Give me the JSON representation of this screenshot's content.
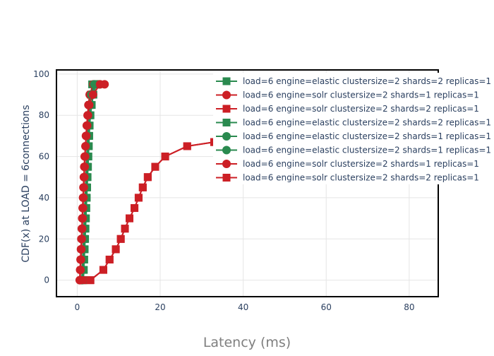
{
  "chart_data": {
    "type": "line",
    "title": "",
    "xlabel": "Latency (ms)",
    "ylabel": "CDF(x) at LOAD = 6connections",
    "xlim": [
      -5,
      87
    ],
    "ylim": [
      -8,
      102
    ],
    "xticks": [
      0,
      20,
      40,
      60,
      80
    ],
    "yticks": [
      0,
      20,
      40,
      60,
      80,
      100
    ],
    "grid": true,
    "legend_position": "top-right",
    "series": [
      {
        "name": "load=6 engine=elastic clustersize=2 shards=2 replicas=1",
        "color": "#2a8a4f",
        "marker": "square",
        "x": [
          1.3,
          1.4,
          1.5,
          1.6,
          1.7,
          1.8,
          1.9,
          2.0,
          2.1,
          2.2,
          2.3,
          2.4,
          2.5,
          2.6,
          2.7,
          2.8,
          2.9,
          3.1,
          3.3,
          3.6,
          4.2
        ],
        "y": [
          0,
          5,
          10,
          15,
          20,
          25,
          30,
          35,
          40,
          45,
          50,
          55,
          60,
          65,
          70,
          75,
          80,
          85,
          90,
          95,
          95
        ]
      },
      {
        "name": "load=6 engine=solr clustersize=2 shards=1 replicas=1",
        "color": "#cc1f25",
        "marker": "circle",
        "x": [
          0.6,
          0.7,
          0.8,
          0.9,
          1.0,
          1.1,
          1.2,
          1.3,
          1.4,
          1.5,
          1.6,
          1.7,
          1.8,
          2.0,
          2.1,
          2.3,
          2.5,
          2.7,
          3.0,
          3.9,
          4.8
        ],
        "y": [
          0,
          5,
          10,
          15,
          20,
          25,
          30,
          35,
          40,
          45,
          50,
          55,
          60,
          65,
          70,
          75,
          80,
          85,
          90,
          95,
          95
        ]
      },
      {
        "name": "load=6 engine=solr clustersize=2 shards=2 replicas=1",
        "color": "#cc1f25",
        "marker": "square",
        "x": [
          1.2,
          3.1,
          6.3,
          7.8,
          9.3,
          10.5,
          11.5,
          12.6,
          13.8,
          14.8,
          15.8,
          17.0,
          18.8,
          21.2,
          26.5,
          33.0
        ],
        "y": [
          0,
          0,
          5,
          10,
          15,
          20,
          25,
          30,
          35,
          40,
          45,
          50,
          55,
          60,
          65,
          67
        ]
      },
      {
        "name": "load=6 engine=elastic clustersize=2 shards=2 replicas=1",
        "color": "#2a8a4f",
        "marker": "square",
        "x": [
          1.5,
          1.6,
          1.7,
          1.8,
          1.9,
          2.0,
          2.1,
          2.2,
          2.3,
          2.4,
          2.5,
          2.6,
          2.7,
          2.8,
          2.9,
          3.0,
          3.2,
          3.5,
          3.9,
          4.6,
          5.0
        ],
        "y": [
          0,
          5,
          10,
          15,
          20,
          25,
          30,
          35,
          40,
          45,
          50,
          55,
          60,
          65,
          70,
          75,
          80,
          85,
          90,
          95,
          95
        ]
      },
      {
        "name": "load=6 engine=elastic clustersize=2 shards=1 replicas=1",
        "color": "#2a8a4f",
        "marker": "circle",
        "x": [
          1.1,
          1.2,
          1.3,
          1.4,
          1.5,
          1.6,
          1.7,
          1.8,
          1.9,
          2.0,
          2.1,
          2.2,
          2.3,
          2.4,
          2.5,
          2.6,
          2.8,
          3.0,
          3.4,
          4.1,
          5.2
        ],
        "y": [
          0,
          5,
          10,
          15,
          20,
          25,
          30,
          35,
          40,
          45,
          50,
          55,
          60,
          65,
          70,
          75,
          80,
          85,
          90,
          95,
          95
        ]
      },
      {
        "name": "load=6 engine=elastic clustersize=2 shards=1 replicas=1",
        "color": "#2a8a4f",
        "marker": "circle",
        "x": [
          1.2,
          1.3,
          1.4,
          1.5,
          1.6,
          1.7,
          1.8,
          1.9,
          2.0,
          2.1,
          2.2,
          2.3,
          2.4,
          2.5,
          2.6,
          2.7,
          2.9,
          3.1,
          3.5,
          4.3,
          5.5
        ],
        "y": [
          0,
          5,
          10,
          15,
          20,
          25,
          30,
          35,
          40,
          45,
          50,
          55,
          60,
          65,
          70,
          75,
          80,
          85,
          90,
          95,
          95
        ]
      },
      {
        "name": "load=6 engine=solr clustersize=2 shards=1 replicas=1",
        "color": "#cc1f25",
        "marker": "circle",
        "x": [
          0.7,
          0.8,
          0.9,
          1.0,
          1.1,
          1.2,
          1.3,
          1.4,
          1.5,
          1.6,
          1.7,
          1.8,
          1.9,
          2.0,
          2.2,
          2.4,
          2.6,
          2.9,
          3.8,
          5.5,
          6.6
        ],
        "y": [
          0,
          5,
          10,
          15,
          20,
          25,
          30,
          35,
          40,
          45,
          50,
          55,
          60,
          65,
          70,
          75,
          80,
          85,
          90,
          95,
          95
        ]
      },
      {
        "name": "load=6 engine=solr clustersize=2 shards=2 replicas=1",
        "color": "#cc1f25",
        "marker": "square",
        "x": [
          1.3,
          3.2,
          6.3,
          7.8,
          9.3,
          10.5,
          11.5,
          12.6,
          13.8,
          14.8,
          15.8,
          17.0,
          18.8,
          21.2,
          26.5,
          33.0
        ],
        "y": [
          0,
          0,
          5,
          10,
          15,
          20,
          25,
          30,
          35,
          40,
          45,
          50,
          55,
          60,
          65,
          67
        ]
      }
    ]
  }
}
